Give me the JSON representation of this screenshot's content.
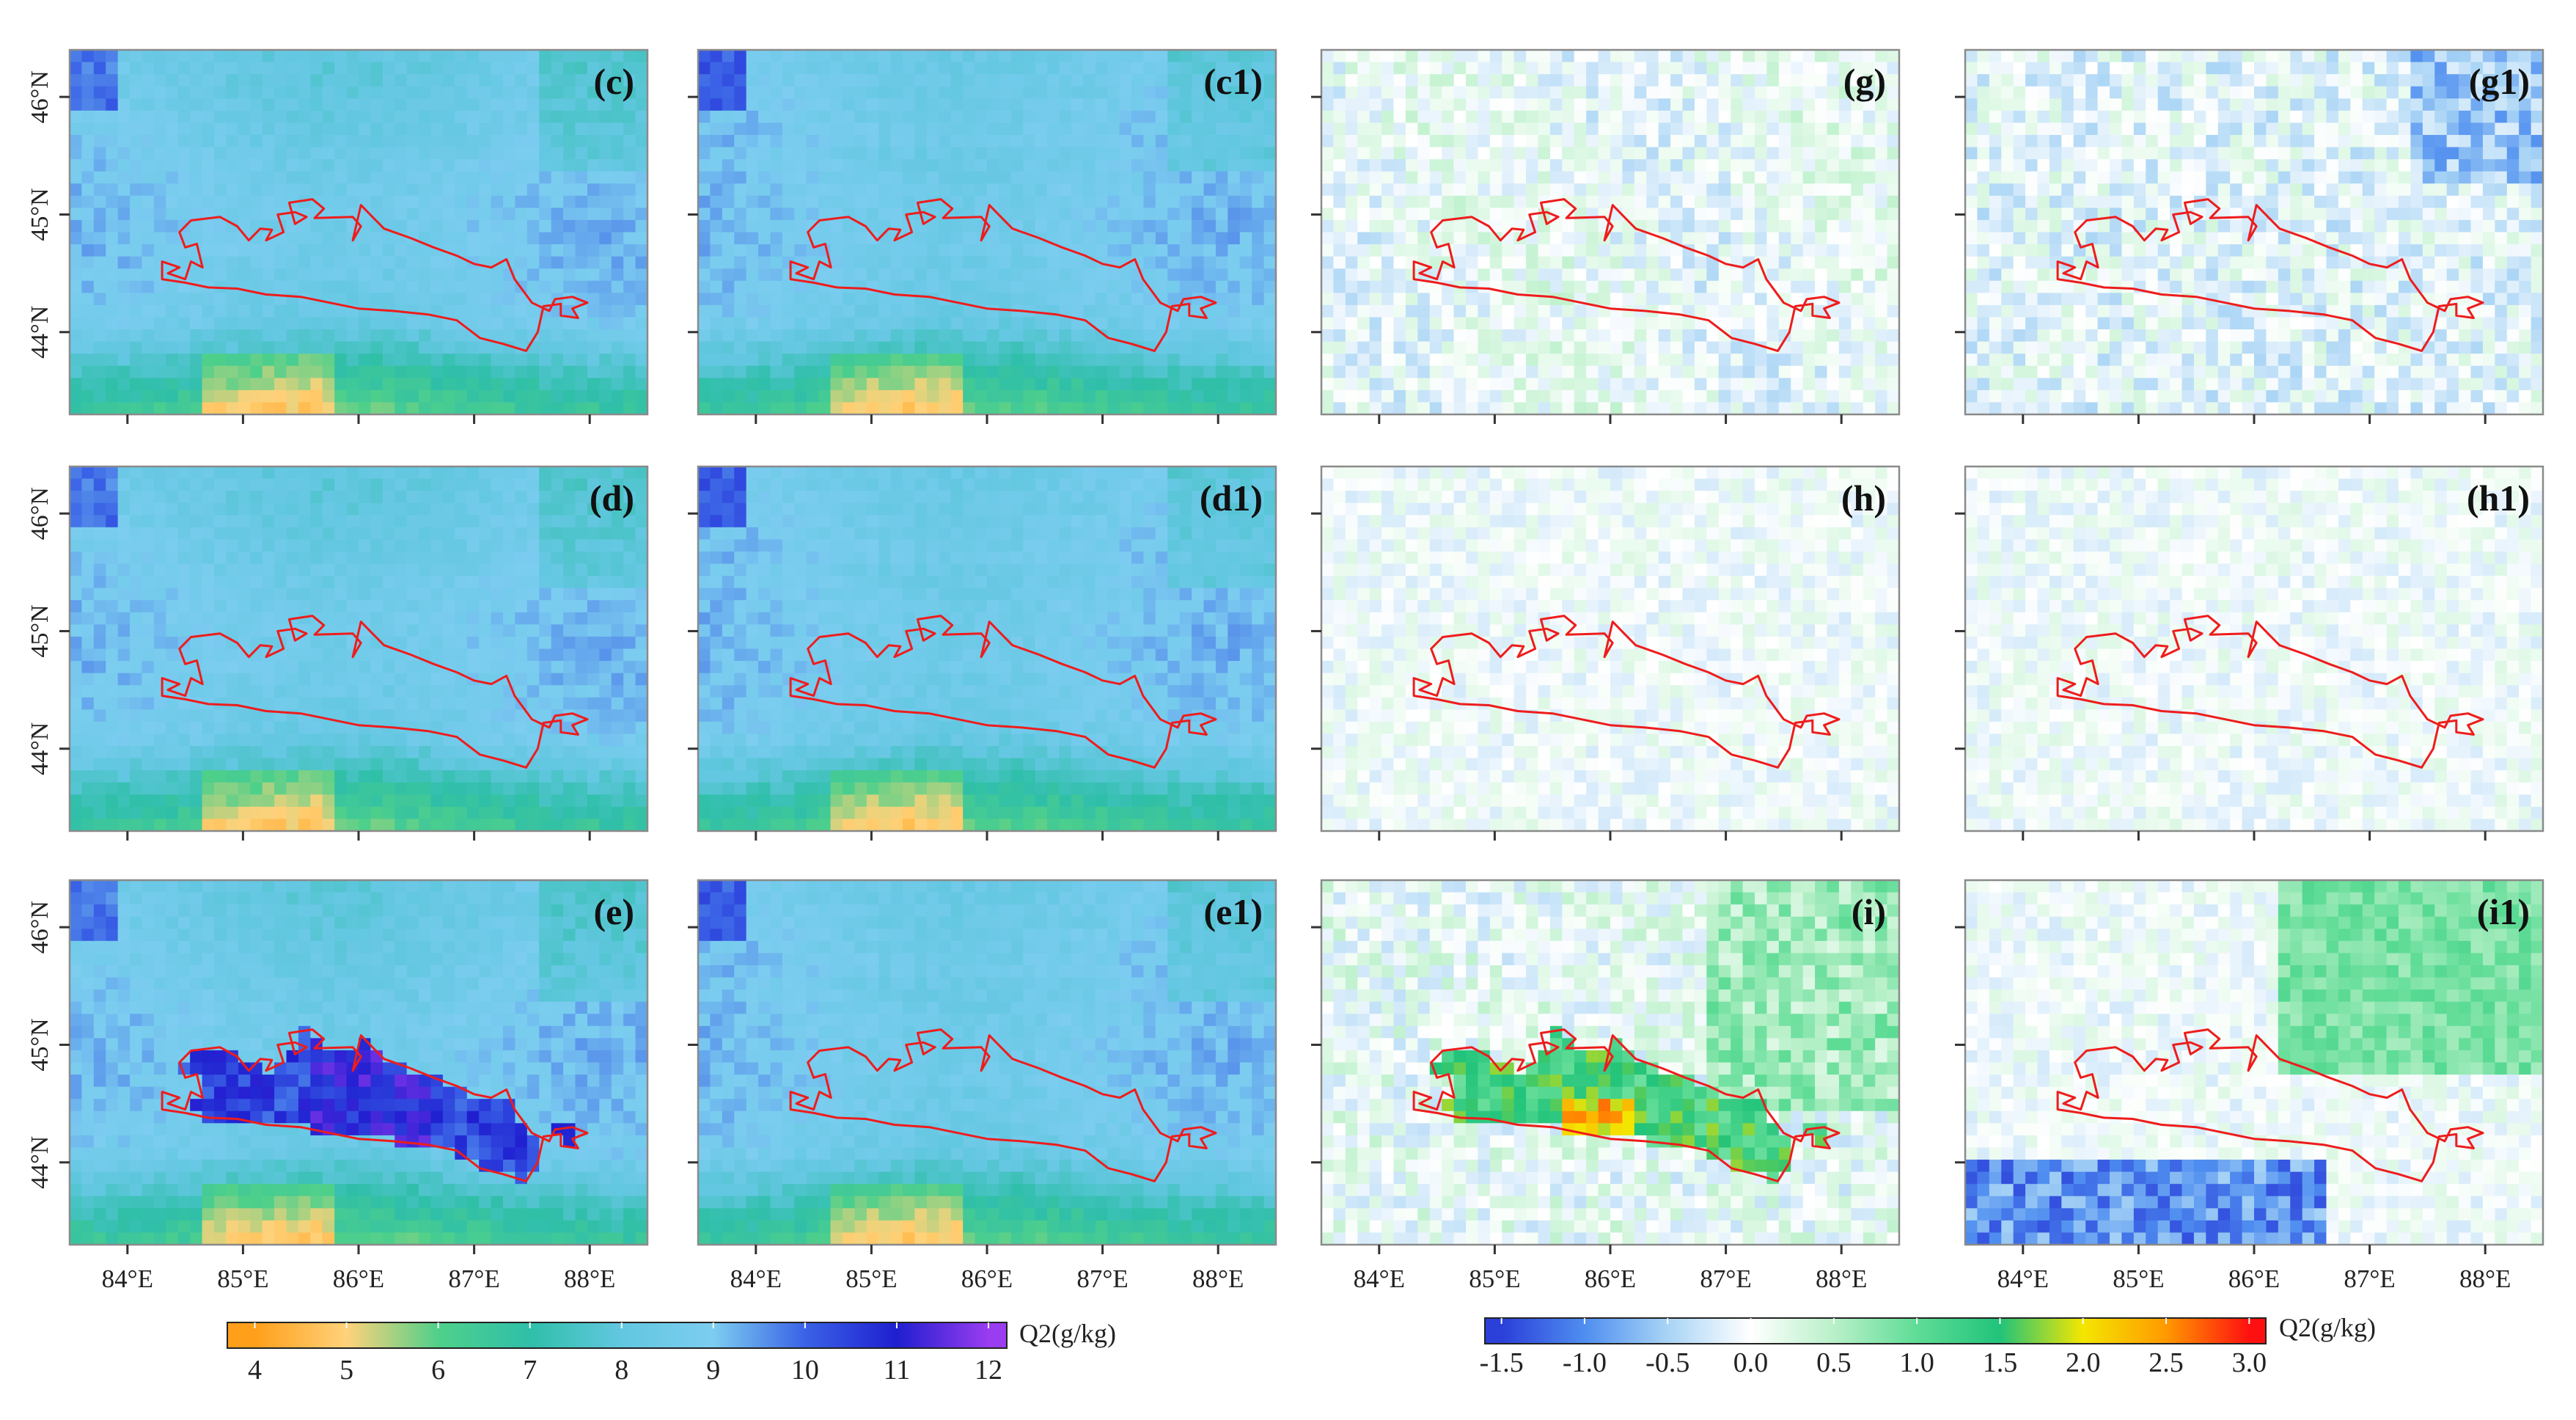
{
  "chart_data": {
    "type": "heatmap",
    "title": "",
    "variable": "Q2(g/kg)",
    "x_axis": {
      "label": "",
      "range": [
        83.5,
        88.5
      ],
      "ticks": [
        84,
        85,
        86,
        87,
        88
      ],
      "tick_labels": [
        "84°E",
        "85°E",
        "86°E",
        "87°E",
        "88°E"
      ]
    },
    "y_axis": {
      "label": "",
      "range": [
        43.3,
        46.4
      ],
      "ticks": [
        44,
        45,
        46
      ],
      "tick_labels": [
        "44°N",
        "45°N",
        "46°N"
      ]
    },
    "panels": [
      {
        "label": "(c)",
        "colorbar": "absolute",
        "pattern": "abs_base"
      },
      {
        "label": "(c1)",
        "colorbar": "absolute",
        "pattern": "abs_alt"
      },
      {
        "label": "(g)",
        "colorbar": "difference",
        "pattern": "diff_weak_mixed"
      },
      {
        "label": "(g1)",
        "colorbar": "difference",
        "pattern": "diff_weak_blue"
      },
      {
        "label": "(d)",
        "colorbar": "absolute",
        "pattern": "abs_base"
      },
      {
        "label": "(d1)",
        "colorbar": "absolute",
        "pattern": "abs_alt"
      },
      {
        "label": "(h)",
        "colorbar": "difference",
        "pattern": "diff_near_zero"
      },
      {
        "label": "(h1)",
        "colorbar": "difference",
        "pattern": "diff_near_zero"
      },
      {
        "label": "(e)",
        "colorbar": "absolute",
        "pattern": "abs_moist_region"
      },
      {
        "label": "(e1)",
        "colorbar": "absolute",
        "pattern": "abs_alt"
      },
      {
        "label": "(i)",
        "colorbar": "difference",
        "pattern": "diff_strong_positive"
      },
      {
        "label": "(i1)",
        "colorbar": "difference",
        "pattern": "diff_northeast_positive"
      }
    ],
    "colorbars": [
      {
        "id": "absolute",
        "label": "Q2(g/kg)",
        "range": [
          3.7,
          12.2
        ],
        "ticks": [
          4,
          5,
          6,
          7,
          8,
          9,
          10,
          11,
          12
        ],
        "tick_labels": [
          "4",
          "5",
          "6",
          "7",
          "8",
          "9",
          "10",
          "11",
          "12"
        ],
        "colors": [
          "#ff9f1a",
          "#ffd27a",
          "#4fd08a",
          "#2fbfa9",
          "#62c7e0",
          "#7ccdf0",
          "#3a62e6",
          "#1f1fd0",
          "#9a3cf0"
        ]
      },
      {
        "id": "difference",
        "label": "Q2(g/kg)",
        "range": [
          -1.6,
          3.1
        ],
        "ticks": [
          -1.5,
          -1.0,
          -0.5,
          0.0,
          0.5,
          1.0,
          1.5,
          2.0,
          2.5,
          3.0
        ],
        "tick_labels": [
          "-1.5",
          "-1.0",
          "-0.5",
          "0.0",
          "0.5",
          "1.0",
          "1.5",
          "2.0",
          "2.5",
          "3.0"
        ],
        "colors": [
          "#2b3fd9",
          "#4f8ef0",
          "#a8d4f5",
          "#ffffff",
          "#b8f0c8",
          "#5fdc96",
          "#21c37a",
          "#f4e600",
          "#ff9900",
          "#ff1010"
        ]
      }
    ]
  }
}
